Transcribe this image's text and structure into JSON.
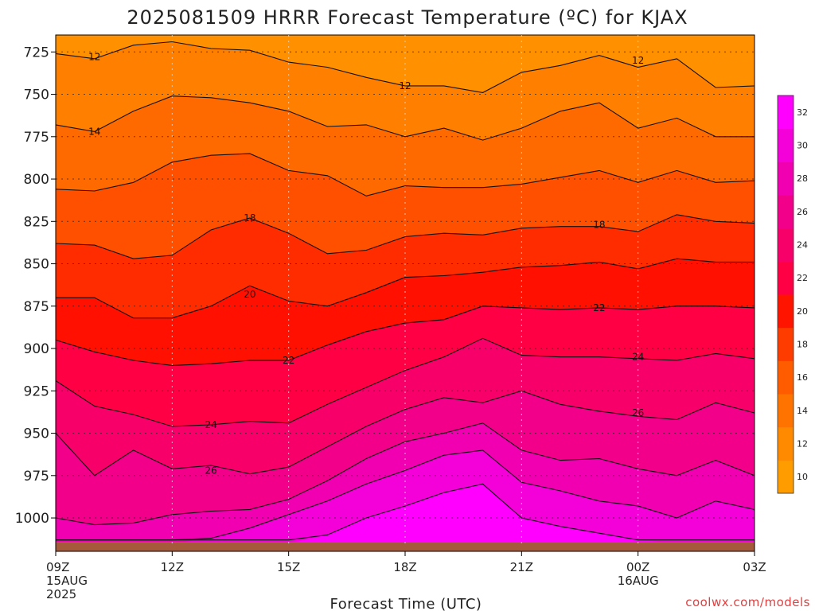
{
  "title": "2025081509 HRRR Forecast Temperature (ºC) for KJAX",
  "xlabel": "Forecast Time (UTC)",
  "credit": "coolwx.com/models",
  "chart_data": {
    "type": "contour",
    "variable": "Temperature",
    "units": "ºC",
    "y_axis": {
      "label": "",
      "ticks": [
        725,
        750,
        775,
        800,
        825,
        850,
        875,
        900,
        925,
        950,
        975,
        1000
      ],
      "range": [
        1015,
        715
      ],
      "units": "hPa",
      "inverted": true
    },
    "x_axis": {
      "ticks": [
        {
          "hour": 0,
          "lines": [
            "09Z",
            "15AUG",
            "2025"
          ]
        },
        {
          "hour": 3,
          "lines": [
            "12Z"
          ]
        },
        {
          "hour": 6,
          "lines": [
            "15Z"
          ]
        },
        {
          "hour": 9,
          "lines": [
            "18Z"
          ]
        },
        {
          "hour": 12,
          "lines": [
            "21Z"
          ]
        },
        {
          "hour": 15,
          "lines": [
            "00Z",
            "16AUG"
          ]
        },
        {
          "hour": 18,
          "lines": [
            "03Z"
          ]
        }
      ],
      "range": [
        0,
        18
      ]
    },
    "grid": true,
    "hours": [
      0,
      1,
      2,
      3,
      4,
      5,
      6,
      7,
      8,
      9,
      10,
      11,
      12,
      13,
      14,
      15,
      16,
      17,
      18
    ],
    "isotherms": [
      {
        "level": 12,
        "p": [
          726,
          729,
          721,
          719,
          723,
          724,
          731,
          734,
          740,
          745,
          745,
          749,
          737,
          733,
          727,
          734,
          729,
          746,
          745
        ]
      },
      {
        "level": 14,
        "p": [
          768,
          772,
          760,
          751,
          752,
          755,
          760,
          769,
          768,
          775,
          770,
          777,
          770,
          760,
          755,
          770,
          764,
          775,
          775
        ]
      },
      {
        "level": 16,
        "p": [
          806,
          807,
          802,
          790,
          786,
          785,
          795,
          798,
          810,
          804,
          805,
          805,
          803,
          799,
          795,
          802,
          795,
          802,
          801
        ]
      },
      {
        "level": 18,
        "p": [
          838,
          839,
          847,
          845,
          830,
          823,
          832,
          844,
          842,
          834,
          832,
          833,
          829,
          828,
          828,
          831,
          821,
          825,
          826
        ]
      },
      {
        "level": 20,
        "p": [
          870,
          870,
          882,
          882,
          875,
          863,
          872,
          875,
          867,
          858,
          857,
          855,
          852,
          851,
          849,
          853,
          847,
          849,
          849
        ]
      },
      {
        "level": 22,
        "p": [
          895,
          902,
          907,
          910,
          909,
          907,
          907,
          898,
          890,
          885,
          883,
          875,
          876,
          877,
          876,
          877,
          875,
          875,
          876
        ]
      },
      {
        "level": 24,
        "p": [
          919,
          934,
          939,
          946,
          945,
          943,
          944,
          933,
          923,
          913,
          905,
          894,
          904,
          905,
          905,
          906,
          907,
          903,
          906
        ]
      },
      {
        "level": 26,
        "p": [
          950,
          975,
          960,
          971,
          969,
          974,
          970,
          958,
          946,
          936,
          929,
          932,
          925,
          933,
          937,
          940,
          942,
          932,
          938
        ]
      },
      {
        "level": 28,
        "p": [
          1000,
          1004,
          1003,
          998,
          996,
          995,
          989,
          978,
          965,
          955,
          950,
          944,
          960,
          966,
          965,
          971,
          975,
          966,
          975
        ]
      },
      {
        "level": 30,
        "p": [
          1015,
          1015,
          1015,
          1015,
          1012,
          1006,
          998,
          990,
          980,
          972,
          963,
          960,
          979,
          984,
          990,
          993,
          1000,
          990,
          995
        ]
      },
      {
        "level": 32,
        "p": [
          1015,
          1015,
          1015,
          1015,
          1015,
          1015,
          1015,
          1010,
          1000,
          993,
          985,
          980,
          1000,
          1005,
          1009,
          1013,
          1015,
          1015,
          1015
        ]
      }
    ],
    "contour_labels": [
      {
        "text": "12",
        "hour": 1.0,
        "p": 728
      },
      {
        "text": "12",
        "hour": 9.0,
        "p": 745
      },
      {
        "text": "12",
        "hour": 15.0,
        "p": 730
      },
      {
        "text": "14",
        "hour": 1.0,
        "p": 772
      },
      {
        "text": "18",
        "hour": 5.0,
        "p": 823
      },
      {
        "text": "18",
        "hour": 14.0,
        "p": 827
      },
      {
        "text": "20",
        "hour": 5.0,
        "p": 868
      },
      {
        "text": "22",
        "hour": 6.0,
        "p": 907
      },
      {
        "text": "22",
        "hour": 14.0,
        "p": 876
      },
      {
        "text": "24",
        "hour": 4.0,
        "p": 945
      },
      {
        "text": "24",
        "hour": 15.0,
        "p": 905
      },
      {
        "text": "26",
        "hour": 4.0,
        "p": 972
      },
      {
        "text": "26",
        "hour": 15.0,
        "p": 938
      }
    ],
    "colorbar": {
      "labels": [
        "10",
        "12",
        "14",
        "16",
        "18",
        "20",
        "22",
        "24",
        "26",
        "28",
        "30",
        "32"
      ],
      "colors": [
        "#ff9c00",
        "#ff8a00",
        "#ff7400",
        "#ff5c00",
        "#ff3c00",
        "#ff1400",
        "#ff0044",
        "#f8006a",
        "#f2008a",
        "#f000b0",
        "#f400d8",
        "#ff00ff"
      ]
    },
    "fill_colors": {
      "lt12": "#ff9000",
      "12-14": "#ff8000",
      "14-16": "#ff6a00",
      "16-18": "#ff5000",
      "18-20": "#ff2c00",
      "20-22": "#ff1000",
      "22-24": "#ff0045",
      "24-26": "#f8006a",
      "26-28": "#f2008a",
      "28-30": "#f000b0",
      "30-32": "#f400d8",
      "gt32": "#ff00ff"
    },
    "ground_color": "#a65a3c"
  }
}
